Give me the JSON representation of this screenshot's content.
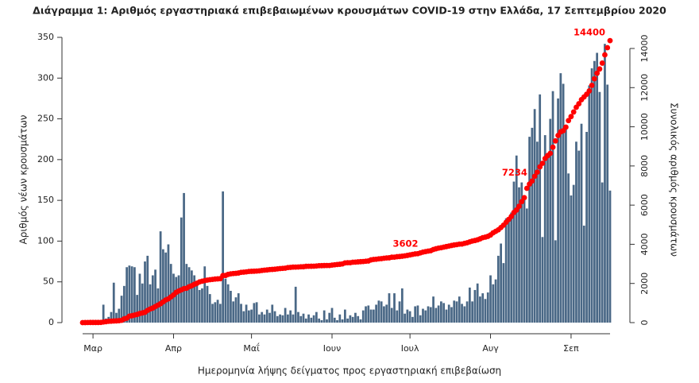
{
  "chart_data": {
    "type": "bar_line",
    "title": "Διάγραμμα 1: Αριθμός εργαστηριακά επιβεβαιωμένων κρουσμάτων COVID-19 στην Ελλάδα, 17 Σεπτεμβρίου 2020",
    "x_label": "Ημερομηνία λήψης δείγματος προς εργαστηριακή επιβεβαίωση",
    "y_label": "Αριθμός νέων κρουσμάτων",
    "y2_label": "Συνολικός αριθμός κρουσμάτων",
    "categories": [
      null,
      null,
      null,
      null,
      "Μαρ",
      null,
      null,
      null,
      null,
      null,
      null,
      null,
      null,
      null,
      null,
      null,
      null,
      null,
      null,
      null,
      null,
      null,
      null,
      null,
      null,
      null,
      null,
      null,
      null,
      null,
      null,
      null,
      null,
      null,
      null,
      "Απρ",
      null,
      null,
      null,
      null,
      null,
      null,
      null,
      null,
      null,
      null,
      null,
      null,
      null,
      null,
      null,
      null,
      null,
      null,
      null,
      null,
      null,
      null,
      null,
      null,
      null,
      null,
      null,
      null,
      null,
      "Μαΐ",
      null,
      null,
      null,
      null,
      null,
      null,
      null,
      null,
      null,
      null,
      null,
      null,
      null,
      null,
      null,
      null,
      null,
      null,
      null,
      null,
      null,
      null,
      null,
      null,
      null,
      null,
      null,
      null,
      null,
      null,
      "Ιουν",
      null,
      null,
      null,
      null,
      null,
      null,
      null,
      null,
      null,
      null,
      null,
      null,
      null,
      null,
      null,
      null,
      null,
      null,
      null,
      null,
      null,
      null,
      null,
      null,
      null,
      null,
      null,
      null,
      null,
      "Ιουλ",
      null,
      null,
      null,
      null,
      null,
      null,
      null,
      null,
      null,
      null,
      null,
      null,
      null,
      null,
      null,
      null,
      null,
      null,
      null,
      null,
      null,
      null,
      null,
      null,
      null,
      null,
      null,
      null,
      null,
      null,
      "Αυγ",
      null,
      null,
      null,
      null,
      null,
      null,
      null,
      null,
      null,
      null,
      null,
      null,
      null,
      null,
      null,
      null,
      null,
      null,
      null,
      null,
      null,
      null,
      null,
      null,
      null,
      null,
      null,
      null,
      null,
      null,
      "Σεπ",
      null,
      null,
      null,
      null,
      null,
      null,
      null,
      null,
      null,
      null,
      null,
      null,
      null,
      null,
      null
    ],
    "series": [
      {
        "name": "Νέα κρούσματα",
        "color": "#4a6886",
        "kind": "bar",
        "values": [
          2,
          2,
          0,
          0,
          0,
          0,
          2,
          0,
          22,
          5,
          7,
          13,
          49,
          12,
          17,
          33,
          45,
          68,
          70,
          69,
          68,
          34,
          60,
          48,
          75,
          82,
          47,
          58,
          65,
          42,
          112,
          90,
          86,
          96,
          72,
          60,
          56,
          58,
          129,
          159,
          72,
          68,
          64,
          58,
          49,
          40,
          42,
          69,
          45,
          35,
          23,
          25,
          28,
          23,
          161,
          54,
          47,
          39,
          26,
          31,
          36,
          23,
          14,
          22,
          15,
          16,
          24,
          25,
          10,
          13,
          10,
          16,
          12,
          22,
          14,
          8,
          10,
          9,
          18,
          10,
          15,
          10,
          44,
          13,
          8,
          11,
          5,
          10,
          6,
          9,
          13,
          5,
          3,
          15,
          4,
          12,
          18,
          6,
          3,
          10,
          4,
          16,
          5,
          9,
          7,
          12,
          8,
          4,
          15,
          20,
          21,
          16,
          16,
          22,
          27,
          26,
          20,
          22,
          36,
          18,
          36,
          15,
          26,
          42,
          11,
          16,
          14,
          7,
          20,
          21,
          9,
          17,
          15,
          20,
          19,
          32,
          18,
          21,
          26,
          24,
          16,
          22,
          19,
          27,
          26,
          32,
          23,
          20,
          26,
          43,
          26,
          40,
          48,
          32,
          36,
          29,
          37,
          58,
          47,
          53,
          82,
          97,
          73,
          128,
          125,
          135,
          173,
          205,
          166,
          172,
          151,
          140,
          228,
          239,
          262,
          222,
          280,
          105,
          230,
          208,
          250,
          284,
          101,
          275,
          306,
          293,
          240,
          183,
          156,
          169,
          222,
          211,
          244,
          119,
          234,
          291,
          312,
          321,
          331,
          283,
          172,
          342,
          292,
          162
        ]
      },
      {
        "name": "Συνολικά κρούσματα",
        "color": "#ff0000",
        "kind": "line",
        "axis": "y2",
        "labeled_indices": [
          131,
          173,
          203
        ],
        "values": [
          1,
          3,
          4,
          7,
          7,
          7,
          7,
          9,
          31,
          45,
          66,
          73,
          84,
          89,
          99,
          117,
          190,
          228,
          331,
          352,
          387,
          418,
          464,
          495,
          530,
          624,
          695,
          743,
          821,
          892,
          966,
          1061,
          1156,
          1212,
          1314,
          1415,
          1544,
          1613,
          1673,
          1735,
          1755,
          1832,
          1884,
          1955,
          2011,
          2081,
          2114,
          2145,
          2170,
          2192,
          2207,
          2224,
          2235,
          2245,
          2401,
          2408,
          2463,
          2490,
          2506,
          2517,
          2534,
          2566,
          2576,
          2591,
          2612,
          2620,
          2626,
          2632,
          2642,
          2663,
          2678,
          2691,
          2710,
          2716,
          2726,
          2744,
          2760,
          2770,
          2780,
          2810,
          2819,
          2834,
          2836,
          2840,
          2850,
          2853,
          2873,
          2876,
          2878,
          2882,
          2892,
          2906,
          2909,
          2915,
          2917,
          2918,
          2937,
          2952,
          2967,
          2980,
          2997,
          3049,
          3058,
          3060,
          3083,
          3088,
          3102,
          3112,
          3121,
          3134,
          3148,
          3203,
          3226,
          3237,
          3256,
          3266,
          3287,
          3302,
          3310,
          3340,
          3343,
          3366,
          3376,
          3390,
          3409,
          3432,
          3458,
          3486,
          3511,
          3519,
          3562,
          3602,
          3626,
          3652,
          3672,
          3732,
          3772,
          3803,
          3826,
          3854,
          3883,
          3910,
          3939,
          3964,
          3983,
          4007,
          4012,
          4048,
          4077,
          4123,
          4166,
          4193,
          4227,
          4279,
          4336,
          4366,
          4405,
          4477,
          4587,
          4662,
          4737,
          4855,
          4976,
          5123,
          5270,
          5421,
          5623,
          5749,
          5942,
          6177,
          6381,
          6858,
          7075,
          7234,
          7472,
          7684,
          7953,
          8136,
          8381,
          8530,
          8644,
          8958,
          9280,
          9558,
          9742,
          9800,
          9984,
          10317,
          10524,
          10757,
          10998,
          11177,
          11386,
          11524,
          11663,
          11832,
          12115,
          12452,
          12734,
          12952,
          13252,
          13676,
          14041,
          14400
        ]
      }
    ],
    "ylim": [
      0,
      350
    ],
    "yticks": [
      0,
      50,
      100,
      150,
      200,
      250,
      300,
      350
    ],
    "y2lim": [
      0,
      14000
    ],
    "y2ticks": [
      0,
      2000,
      4000,
      6000,
      8000,
      10000,
      12000,
      14000
    ],
    "grid": false
  }
}
